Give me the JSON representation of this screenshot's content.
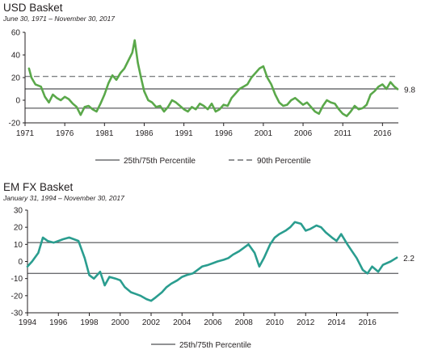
{
  "chart_data": [
    {
      "type": "line",
      "title": "USD Basket",
      "subtitle": "June 30, 1971 – November 30, 2017",
      "x_ticks": [
        "1971",
        "1976",
        "1981",
        "1986",
        "1991",
        "1996",
        "2001",
        "2006",
        "2011",
        "2016"
      ],
      "y_ticks": [
        "60",
        "40",
        "20",
        "0",
        "-20"
      ],
      "xlim": [
        1971,
        2018
      ],
      "ylim": [
        -20,
        60
      ],
      "grid": false,
      "legend_position": "bottom",
      "series": [
        {
          "name": "",
          "color": "#5aa84a",
          "x": [
            1971.5,
            1971.8,
            1972.3,
            1973.0,
            1973.5,
            1974.0,
            1974.5,
            1975.0,
            1975.5,
            1976.0,
            1976.5,
            1977.0,
            1977.5,
            1978.0,
            1978.5,
            1979.0,
            1979.5,
            1980.0,
            1980.5,
            1981.0,
            1981.5,
            1982.0,
            1982.5,
            1983.0,
            1983.5,
            1984.0,
            1984.5,
            1984.8,
            1985.2,
            1985.6,
            1986.0,
            1986.5,
            1987.0,
            1987.5,
            1988.0,
            1988.5,
            1989.0,
            1989.5,
            1990.0,
            1990.5,
            1991.0,
            1991.5,
            1992.0,
            1992.5,
            1993.0,
            1993.5,
            1994.0,
            1994.5,
            1995.0,
            1995.5,
            1996.0,
            1996.5,
            1997.0,
            1997.5,
            1998.0,
            1998.5,
            1999.0,
            1999.5,
            2000.0,
            2000.5,
            2001.0,
            2001.5,
            2002.0,
            2002.5,
            2003.0,
            2003.5,
            2004.0,
            2004.5,
            2005.0,
            2005.5,
            2006.0,
            2006.5,
            2007.0,
            2007.5,
            2008.0,
            2008.5,
            2009.0,
            2009.5,
            2010.0,
            2010.5,
            2011.0,
            2011.5,
            2012.0,
            2012.5,
            2013.0,
            2013.5,
            2014.0,
            2014.5,
            2015.0,
            2015.5,
            2016.0,
            2016.5,
            2017.0,
            2017.5,
            2017.9
          ],
          "values": [
            28,
            20,
            14,
            12,
            3,
            -2,
            5,
            2,
            0,
            3,
            1,
            -3,
            -6,
            -13,
            -6,
            -5,
            -8,
            -10,
            -3,
            5,
            15,
            22,
            18,
            24,
            28,
            35,
            42,
            53,
            33,
            20,
            8,
            0,
            -2,
            -6,
            -5,
            -10,
            -6,
            0,
            -2,
            -5,
            -8,
            -10,
            -6,
            -8,
            -3,
            -5,
            -8,
            -3,
            -10,
            -8,
            -4,
            -5,
            2,
            6,
            10,
            12,
            14,
            20,
            24,
            28,
            30,
            20,
            14,
            5,
            -2,
            -5,
            -4,
            0,
            2,
            -1,
            -4,
            -2,
            -6,
            -10,
            -12,
            -5,
            0,
            -2,
            -3,
            -8,
            -12,
            -14,
            -10,
            -5,
            -8,
            -7,
            -4,
            5,
            8,
            12,
            14,
            10,
            16,
            12,
            9.8
          ]
        }
      ],
      "reference_lines": [
        {
          "label": "25th/75th Percentile",
          "values": [
            10,
            -7
          ],
          "style": "solid",
          "color": "#6d6e71"
        },
        {
          "label": "90th Percentile",
          "values": [
            21
          ],
          "style": "dashed",
          "color": "#808285"
        }
      ],
      "annotations": [
        {
          "label": "9.8",
          "x": 2017.9,
          "y": 9.8
        }
      ],
      "legend": [
        {
          "label": "25th/75th Percentile",
          "style": "solid"
        },
        {
          "label": "90th Percentile",
          "style": "dashed"
        }
      ]
    },
    {
      "type": "line",
      "title": "EM FX Basket",
      "subtitle": "January 31, 1994 – November 30, 2017",
      "x_ticks": [
        "1994",
        "1996",
        "1998",
        "2000",
        "2002",
        "2004",
        "2006",
        "2008",
        "2010",
        "2012",
        "2014",
        "2016"
      ],
      "y_ticks": [
        "30",
        "20",
        "10",
        "0",
        "-10",
        "-20",
        "-30"
      ],
      "xlim": [
        1994,
        2018
      ],
      "ylim": [
        -30,
        30
      ],
      "grid": false,
      "legend_position": "bottom",
      "series": [
        {
          "name": "",
          "color": "#2a9d8f",
          "x": [
            1994.0,
            1994.3,
            1994.7,
            1995.0,
            1995.3,
            1995.7,
            1996.0,
            1996.3,
            1996.7,
            1997.0,
            1997.3,
            1997.7,
            1998.0,
            1998.3,
            1998.7,
            1999.0,
            1999.3,
            1999.7,
            2000.0,
            2000.3,
            2000.7,
            2001.0,
            2001.3,
            2001.7,
            2002.0,
            2002.3,
            2002.7,
            2003.0,
            2003.3,
            2003.7,
            2004.0,
            2004.3,
            2004.7,
            2005.0,
            2005.3,
            2005.7,
            2006.0,
            2006.3,
            2006.7,
            2007.0,
            2007.3,
            2007.7,
            2008.0,
            2008.3,
            2008.7,
            2009.0,
            2009.3,
            2009.7,
            2010.0,
            2010.3,
            2010.7,
            2011.0,
            2011.3,
            2011.7,
            2012.0,
            2012.3,
            2012.7,
            2013.0,
            2013.3,
            2013.7,
            2014.0,
            2014.3,
            2014.7,
            2015.0,
            2015.3,
            2015.7,
            2016.0,
            2016.3,
            2016.7,
            2017.0,
            2017.5,
            2017.9
          ],
          "values": [
            -3,
            0,
            5,
            14,
            12,
            11,
            12,
            13,
            14,
            13,
            12,
            2,
            -8,
            -10,
            -6,
            -14,
            -9,
            -10,
            -11,
            -15,
            -18,
            -19,
            -20,
            -22,
            -23,
            -21,
            -18,
            -15,
            -13,
            -11,
            -9,
            -8,
            -7,
            -5,
            -3,
            -2,
            -1,
            0,
            1,
            2,
            4,
            6,
            8,
            10,
            5,
            -3,
            2,
            10,
            14,
            16,
            18,
            20,
            23,
            22,
            18,
            19,
            21,
            20,
            17,
            14,
            12,
            16,
            10,
            6,
            2,
            -5,
            -7,
            -3,
            -6,
            -2,
            0,
            2.2
          ]
        }
      ],
      "reference_lines": [
        {
          "label": "25th/75th Percentile",
          "values": [
            11,
            -7
          ],
          "style": "solid",
          "color": "#6d6e71"
        }
      ],
      "annotations": [
        {
          "label": "2.2",
          "x": 2017.9,
          "y": 2.2
        }
      ],
      "legend": [
        {
          "label": "25th/75th Percentile",
          "style": "solid"
        }
      ]
    }
  ]
}
